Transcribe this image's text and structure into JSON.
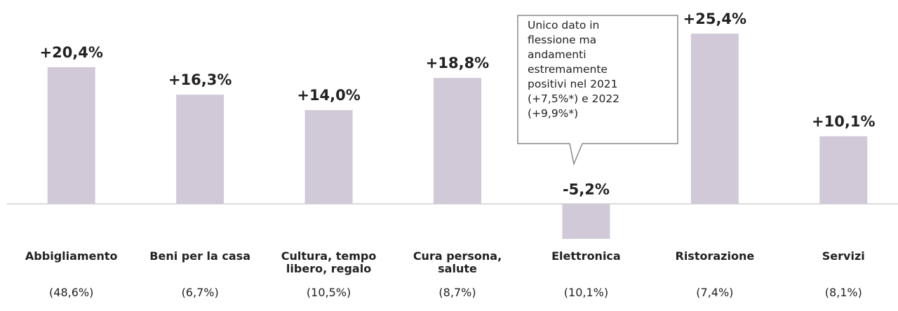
{
  "chart_data": {
    "type": "bar",
    "categories": [
      "Abbigliamento",
      "Beni per la casa",
      "Cultura, tempo libero, regalo",
      "Cura persona, salute",
      "Elettronica",
      "Ristorazione",
      "Servizi"
    ],
    "shares": [
      "(48,6%)",
      "(6,7%)",
      "(10,5%)",
      "(8,7%)",
      "(10,1%)",
      "(7,4%)",
      "(8,1%)"
    ],
    "values": [
      20.4,
      16.3,
      14.0,
      18.8,
      -5.2,
      25.4,
      10.1
    ],
    "value_labels": [
      "+20,4%",
      "+16,3%",
      "+14,0%",
      "+18,8%",
      "-5,2%",
      "+25,4%",
      "+10,1%"
    ],
    "color": "#d1c9d7",
    "ylim": [
      -10,
      30
    ],
    "annotation": "Unico dato in flessione ma andamenti estremamente positivi nel 2021 (+7,5%*) e 2022 (+9,9%*)"
  }
}
